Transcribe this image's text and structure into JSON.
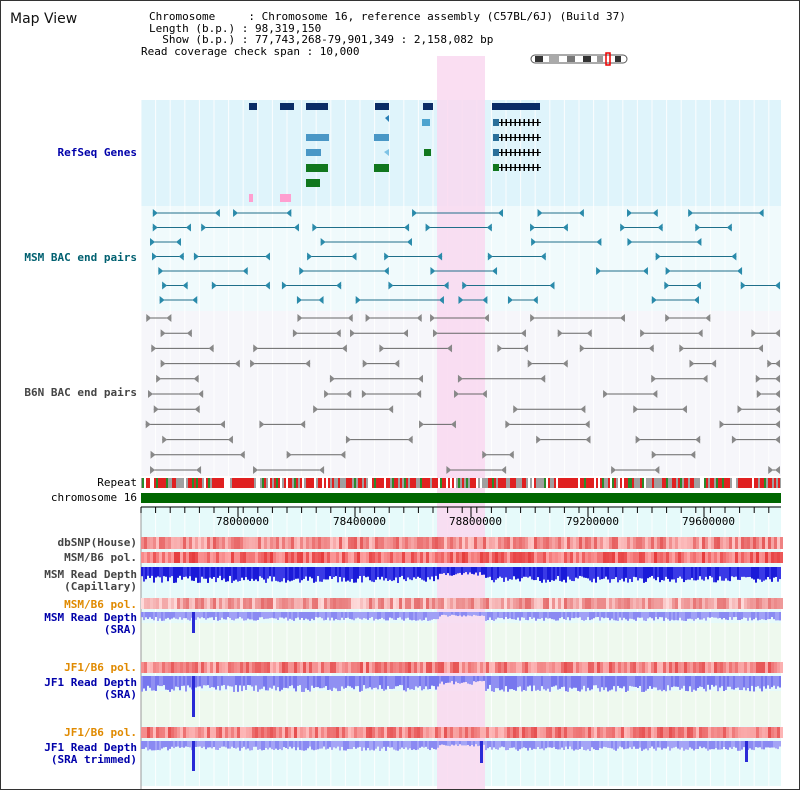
{
  "app": {
    "title": "Map View"
  },
  "info": {
    "chromosome": "Chromosome     : Chromosome 16, reference assembly (C57BL/6J) (Build 37)",
    "length": "Length (b.p.) : 98,319,150",
    "show": "  Show (b.p.) : 77,743,268-79,901,349 : 2,158,082 bp",
    "span": "Read coverage check span : 10,000"
  },
  "tracks": {
    "refseq": "RefSeq Genes",
    "msm_bac": "MSM BAC end pairs",
    "b6n_bac": "B6N BAC end pairs",
    "repeat": "Repeat",
    "chromosome": "chromosome 16",
    "dbsnp": "dbSNP(House)",
    "msm_b6_pol": "MSM/B6 pol.",
    "msm_depth_cap": "MSM Read Depth\n(Capillary)",
    "msm_b6_pol2": "MSM/B6 pol.",
    "msm_depth_sra": "MSM Read Depth\n(SRA)",
    "jf1_b6_pol": "JF1/B6 pol.",
    "jf1_depth_sra": "JF1 Read Depth\n(SRA)",
    "jf1_b6_pol2": "JF1/B6 pol.",
    "jf1_depth_trim": "JF1 Read Depth\n(SRA trimmed)"
  },
  "axis": {
    "ticks": [
      "78000000",
      "78400000",
      "78800000",
      "79200000",
      "79600000"
    ]
  },
  "colors": {
    "refseq_bg": "#dff4fb",
    "highlight": "#f9dcf0",
    "depth_blue": "#2222dd",
    "depth_lavender": "#8f8ff5",
    "chrom_green": "#006600"
  }
}
